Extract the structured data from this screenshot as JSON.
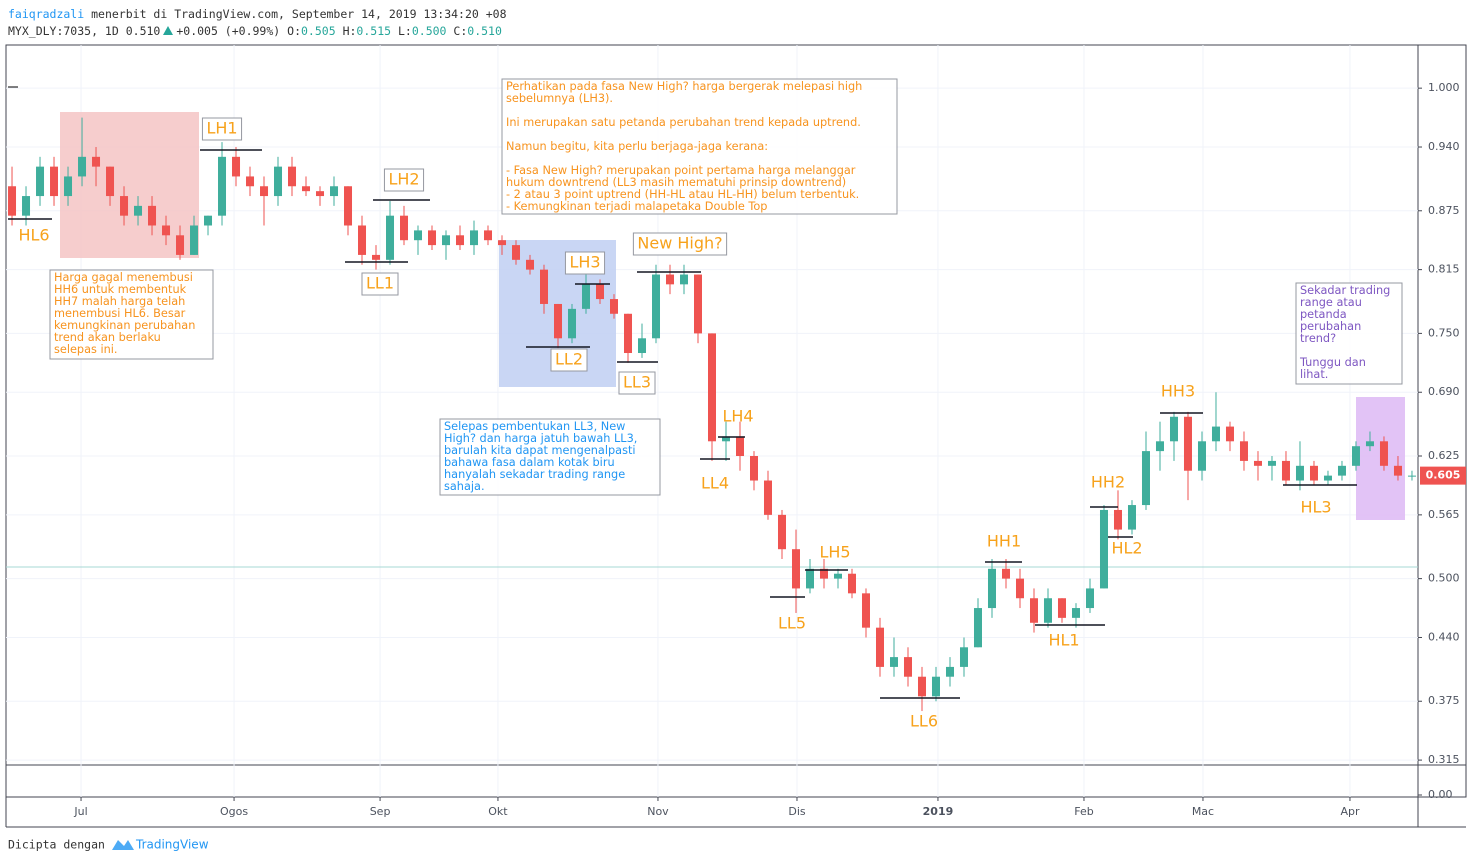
{
  "header": {
    "author": "faiqradzali",
    "published": "menerbit di TradingView.com, September 14, 2019 13:34:20 +08",
    "symbol": "MYX_DLY:7035, 1D",
    "last": "0.510",
    "change": "+0.005 (+0.99%)",
    "o_label": "O:",
    "o": "0.505",
    "h_label": "H:",
    "h": "0.515",
    "l_label": "L:",
    "l": "0.500",
    "c_label": "C:",
    "c": "0.510"
  },
  "footer": {
    "made_with": "Dicipta dengan",
    "brand": "TradingView"
  },
  "chart_data": {
    "type": "candlestick",
    "up_color": "#3fae9c",
    "down_color": "#ef5350",
    "xlim": [
      -0.43,
      100.43
    ],
    "xticks": [
      {
        "value": 4.93,
        "label": "Jul"
      },
      {
        "value": 15.86,
        "label": "Ogos"
      },
      {
        "value": 26.29,
        "label": "Sep"
      },
      {
        "value": 34.71,
        "label": "Okt"
      },
      {
        "value": 46.14,
        "label": "Nov"
      },
      {
        "value": 56.07,
        "label": "Dis"
      },
      {
        "value": 66.14,
        "label": "2019"
      },
      {
        "value": 76.57,
        "label": "Feb"
      },
      {
        "value": 85.07,
        "label": "Mac"
      },
      {
        "value": 95.57,
        "label": "Apr"
      }
    ],
    "ylim": [
      0.31,
      1.044
    ],
    "yticks": [
      {
        "value": 1.0,
        "label": "1.000"
      },
      {
        "value": 0.94,
        "label": "0.940"
      },
      0.875,
      0.815,
      {
        "value": 0.75,
        "label": "0.750"
      },
      {
        "value": 0.69,
        "label": "0.690"
      },
      0.625,
      0.565,
      {
        "value": 0.5,
        "label": "0.500"
      },
      {
        "value": 0.44,
        "label": "0.440"
      },
      0.375,
      0.315
    ],
    "lower_pane_yticks": [
      {
        "value": 0,
        "label": "0.00"
      }
    ],
    "grid": true,
    "last_price": 0.605,
    "ohlc": [
      [
        0.9,
        0.92,
        0.86,
        0.87
      ],
      [
        0.87,
        0.9,
        0.86,
        0.89
      ],
      [
        0.89,
        0.93,
        0.88,
        0.92
      ],
      [
        0.92,
        0.93,
        0.88,
        0.89
      ],
      [
        0.89,
        0.92,
        0.88,
        0.91
      ],
      [
        0.91,
        0.97,
        0.9,
        0.93
      ],
      [
        0.93,
        0.94,
        0.9,
        0.92
      ],
      [
        0.92,
        0.92,
        0.88,
        0.89
      ],
      [
        0.89,
        0.9,
        0.86,
        0.87
      ],
      [
        0.87,
        0.89,
        0.86,
        0.88
      ],
      [
        0.88,
        0.89,
        0.85,
        0.86
      ],
      [
        0.86,
        0.87,
        0.84,
        0.85
      ],
      [
        0.85,
        0.86,
        0.825,
        0.83
      ],
      [
        0.83,
        0.87,
        0.83,
        0.86
      ],
      [
        0.86,
        0.87,
        0.85,
        0.87
      ],
      [
        0.87,
        0.945,
        0.86,
        0.93
      ],
      [
        0.93,
        0.94,
        0.9,
        0.91
      ],
      [
        0.91,
        0.92,
        0.89,
        0.9
      ],
      [
        0.9,
        0.91,
        0.86,
        0.89
      ],
      [
        0.89,
        0.93,
        0.88,
        0.92
      ],
      [
        0.92,
        0.93,
        0.89,
        0.9
      ],
      [
        0.9,
        0.91,
        0.89,
        0.895
      ],
      [
        0.895,
        0.9,
        0.88,
        0.89
      ],
      [
        0.89,
        0.91,
        0.88,
        0.9
      ],
      [
        0.9,
        0.9,
        0.85,
        0.86
      ],
      [
        0.86,
        0.87,
        0.82,
        0.83
      ],
      [
        0.83,
        0.84,
        0.815,
        0.825
      ],
      [
        0.825,
        0.885,
        0.82,
        0.87
      ],
      [
        0.87,
        0.88,
        0.84,
        0.845
      ],
      [
        0.845,
        0.86,
        0.83,
        0.855
      ],
      [
        0.855,
        0.86,
        0.835,
        0.84
      ],
      [
        0.84,
        0.855,
        0.825,
        0.85
      ],
      [
        0.85,
        0.86,
        0.835,
        0.84
      ],
      [
        0.84,
        0.865,
        0.83,
        0.855
      ],
      [
        0.855,
        0.86,
        0.84,
        0.845
      ],
      [
        0.845,
        0.85,
        0.83,
        0.84
      ],
      [
        0.84,
        0.845,
        0.82,
        0.825
      ],
      [
        0.825,
        0.83,
        0.81,
        0.815
      ],
      [
        0.815,
        0.82,
        0.77,
        0.78
      ],
      [
        0.78,
        0.78,
        0.735,
        0.745
      ],
      [
        0.745,
        0.78,
        0.74,
        0.775
      ],
      [
        0.775,
        0.81,
        0.77,
        0.8
      ],
      [
        0.8,
        0.805,
        0.78,
        0.785
      ],
      [
        0.785,
        0.79,
        0.765,
        0.77
      ],
      [
        0.77,
        0.77,
        0.72,
        0.73
      ],
      [
        0.73,
        0.76,
        0.725,
        0.745
      ],
      [
        0.745,
        0.82,
        0.74,
        0.81
      ],
      [
        0.81,
        0.82,
        0.79,
        0.8
      ],
      [
        0.8,
        0.82,
        0.79,
        0.81
      ],
      [
        0.81,
        0.81,
        0.74,
        0.75
      ],
      [
        0.75,
        0.75,
        0.62,
        0.64
      ],
      [
        0.64,
        0.66,
        0.62,
        0.645
      ],
      [
        0.645,
        0.66,
        0.61,
        0.625
      ],
      [
        0.625,
        0.63,
        0.59,
        0.6
      ],
      [
        0.6,
        0.61,
        0.56,
        0.565
      ],
      [
        0.565,
        0.57,
        0.52,
        0.53
      ],
      [
        0.53,
        0.55,
        0.465,
        0.49
      ],
      [
        0.49,
        0.52,
        0.485,
        0.51
      ],
      [
        0.51,
        0.52,
        0.49,
        0.5
      ],
      [
        0.5,
        0.51,
        0.49,
        0.505
      ],
      [
        0.505,
        0.51,
        0.48,
        0.485
      ],
      [
        0.485,
        0.49,
        0.44,
        0.45
      ],
      [
        0.45,
        0.46,
        0.4,
        0.41
      ],
      [
        0.41,
        0.44,
        0.4,
        0.42
      ],
      [
        0.42,
        0.43,
        0.39,
        0.4
      ],
      [
        0.4,
        0.41,
        0.365,
        0.38
      ],
      [
        0.38,
        0.41,
        0.375,
        0.4
      ],
      [
        0.4,
        0.42,
        0.39,
        0.41
      ],
      [
        0.41,
        0.44,
        0.4,
        0.43
      ],
      [
        0.43,
        0.48,
        0.43,
        0.47
      ],
      [
        0.47,
        0.52,
        0.46,
        0.51
      ],
      [
        0.51,
        0.52,
        0.49,
        0.5
      ],
      [
        0.5,
        0.51,
        0.47,
        0.48
      ],
      [
        0.48,
        0.49,
        0.445,
        0.455
      ],
      [
        0.455,
        0.49,
        0.45,
        0.48
      ],
      [
        0.48,
        0.48,
        0.455,
        0.46
      ],
      [
        0.46,
        0.475,
        0.45,
        0.47
      ],
      [
        0.47,
        0.5,
        0.465,
        0.49
      ],
      [
        0.49,
        0.575,
        0.49,
        0.57
      ],
      [
        0.57,
        0.59,
        0.54,
        0.55
      ],
      [
        0.55,
        0.58,
        0.545,
        0.575
      ],
      [
        0.575,
        0.65,
        0.57,
        0.63
      ],
      [
        0.63,
        0.66,
        0.61,
        0.64
      ],
      [
        0.64,
        0.67,
        0.62,
        0.665
      ],
      [
        0.665,
        0.67,
        0.58,
        0.61
      ],
      [
        0.61,
        0.65,
        0.6,
        0.64
      ],
      [
        0.64,
        0.69,
        0.63,
        0.655
      ],
      [
        0.655,
        0.66,
        0.63,
        0.64
      ],
      [
        0.64,
        0.65,
        0.61,
        0.62
      ],
      [
        0.62,
        0.63,
        0.6,
        0.615
      ],
      [
        0.615,
        0.625,
        0.6,
        0.62
      ],
      [
        0.62,
        0.63,
        0.595,
        0.6
      ],
      [
        0.6,
        0.64,
        0.59,
        0.615
      ],
      [
        0.615,
        0.62,
        0.595,
        0.6
      ],
      [
        0.6,
        0.61,
        0.595,
        0.605
      ],
      [
        0.605,
        0.62,
        0.6,
        0.615
      ],
      [
        0.615,
        0.64,
        0.61,
        0.635
      ],
      [
        0.635,
        0.65,
        0.63,
        0.64
      ],
      [
        0.64,
        0.645,
        0.61,
        0.615
      ],
      [
        0.615,
        0.625,
        0.6,
        0.605
      ],
      [
        0.605,
        0.61,
        0.6,
        0.605
      ]
    ],
    "labels": [
      "HL6",
      "LH1",
      "LH2",
      "LL1",
      "LH3",
      "LL2",
      "LL3",
      "New High?",
      "LH4",
      "LL4",
      "LH5",
      "LL5",
      "LL6",
      "HH1",
      "HL1",
      "HH2",
      "HL2",
      "HH3",
      "HL3"
    ],
    "notes": [
      [
        [
          "Harga gagal menembusi",
          "HH6 untuk membentuk",
          "HH7 malah harga telah",
          "menembusi HL6. Besar",
          "kemungkinan perubahan",
          "trend akan berlaku",
          "selepas ini."
        ]
      ],
      [
        [
          "Perhatikan pada fasa New High? harga bergerak melepasi high",
          "sebelumnya (LH3)."
        ],
        [
          "Ini merupakan satu petanda perubahan trend kepada uptrend."
        ],
        [
          "Namun begitu, kita perlu berjaga-jaga kerana:"
        ],
        [
          "- Fasa New High? merupakan point pertama harga melanggar",
          "hukum downtrend (LL3 masih mematuhi prinsip downtrend)",
          "- 2 atau 3 point uptrend (HH-HL atau HL-HH) belum terbentuk.",
          "- Kemungkinan terjadi malapetaka Double Top"
        ]
      ],
      [
        [
          "Selepas pembentukan LL3, New",
          "High? dan harga jatuh bawah LL3,",
          "barulah kita dapat mengenalpasti",
          "bahawa fasa dalam kotak biru",
          "hanyalah sekadar trading range",
          "sahaja."
        ]
      ],
      [
        [
          "Sekadar trading",
          "range atau",
          "petanda",
          "perubahan",
          "trend?"
        ],
        [
          "Tunggu dan",
          "lihat."
        ]
      ]
    ]
  }
}
